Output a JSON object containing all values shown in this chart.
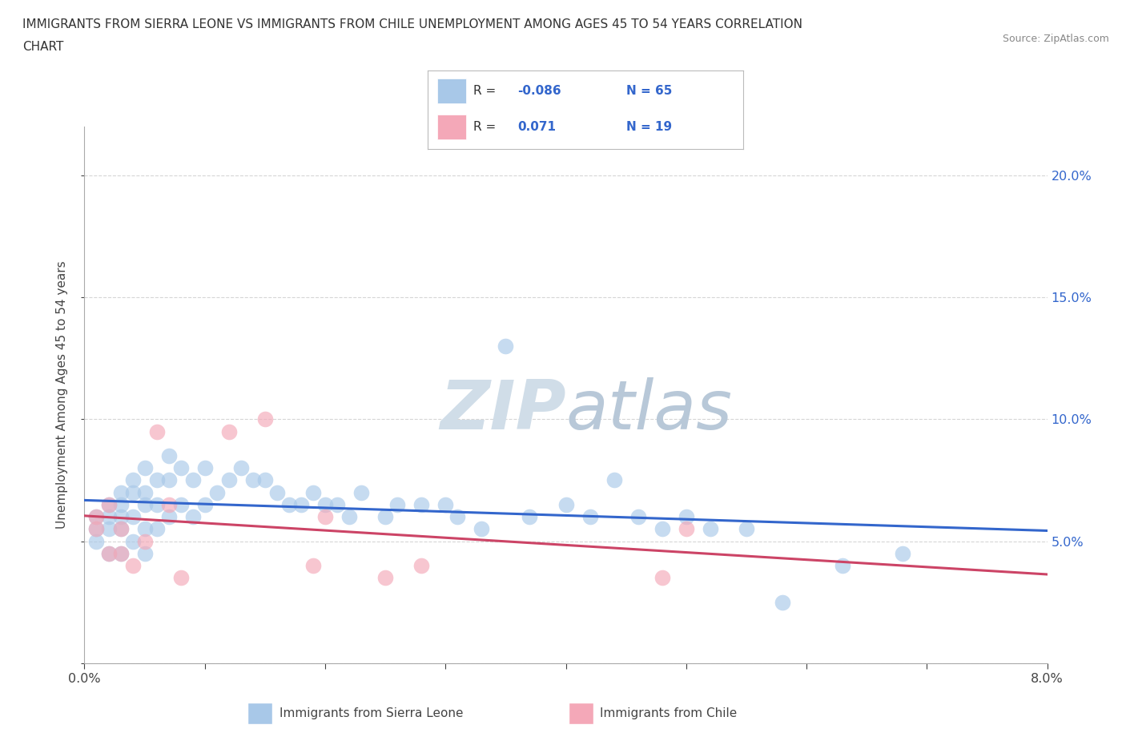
{
  "title_line1": "IMMIGRANTS FROM SIERRA LEONE VS IMMIGRANTS FROM CHILE UNEMPLOYMENT AMONG AGES 45 TO 54 YEARS CORRELATION",
  "title_line2": "CHART",
  "source": "Source: ZipAtlas.com",
  "ylabel": "Unemployment Among Ages 45 to 54 years",
  "xlim": [
    0.0,
    0.08
  ],
  "ylim": [
    0.0,
    0.22
  ],
  "sierra_leone_color": "#a8c8e8",
  "chile_color": "#f4a8b8",
  "sierra_leone_line_color": "#3366cc",
  "chile_line_color": "#cc4466",
  "watermark_color": "#d0dde8",
  "sierra_leone_x": [
    0.001,
    0.001,
    0.001,
    0.002,
    0.002,
    0.002,
    0.002,
    0.003,
    0.003,
    0.003,
    0.003,
    0.003,
    0.004,
    0.004,
    0.004,
    0.004,
    0.005,
    0.005,
    0.005,
    0.005,
    0.005,
    0.006,
    0.006,
    0.006,
    0.007,
    0.007,
    0.007,
    0.008,
    0.008,
    0.009,
    0.009,
    0.01,
    0.01,
    0.011,
    0.012,
    0.013,
    0.014,
    0.015,
    0.016,
    0.017,
    0.018,
    0.019,
    0.02,
    0.021,
    0.022,
    0.023,
    0.025,
    0.026,
    0.028,
    0.03,
    0.031,
    0.033,
    0.035,
    0.037,
    0.04,
    0.042,
    0.044,
    0.046,
    0.048,
    0.05,
    0.052,
    0.055,
    0.058,
    0.063,
    0.068
  ],
  "sierra_leone_y": [
    0.06,
    0.055,
    0.05,
    0.065,
    0.06,
    0.055,
    0.045,
    0.07,
    0.065,
    0.06,
    0.055,
    0.045,
    0.075,
    0.07,
    0.06,
    0.05,
    0.08,
    0.07,
    0.065,
    0.055,
    0.045,
    0.075,
    0.065,
    0.055,
    0.085,
    0.075,
    0.06,
    0.08,
    0.065,
    0.075,
    0.06,
    0.08,
    0.065,
    0.07,
    0.075,
    0.08,
    0.075,
    0.075,
    0.07,
    0.065,
    0.065,
    0.07,
    0.065,
    0.065,
    0.06,
    0.07,
    0.06,
    0.065,
    0.065,
    0.065,
    0.06,
    0.055,
    0.13,
    0.06,
    0.065,
    0.06,
    0.075,
    0.06,
    0.055,
    0.06,
    0.055,
    0.055,
    0.025,
    0.04,
    0.045
  ],
  "chile_x": [
    0.001,
    0.001,
    0.002,
    0.002,
    0.003,
    0.003,
    0.004,
    0.005,
    0.006,
    0.007,
    0.008,
    0.012,
    0.015,
    0.019,
    0.02,
    0.025,
    0.028,
    0.048,
    0.05
  ],
  "chile_y": [
    0.06,
    0.055,
    0.065,
    0.045,
    0.055,
    0.045,
    0.04,
    0.05,
    0.095,
    0.065,
    0.035,
    0.095,
    0.1,
    0.04,
    0.06,
    0.035,
    0.04,
    0.035,
    0.055
  ]
}
